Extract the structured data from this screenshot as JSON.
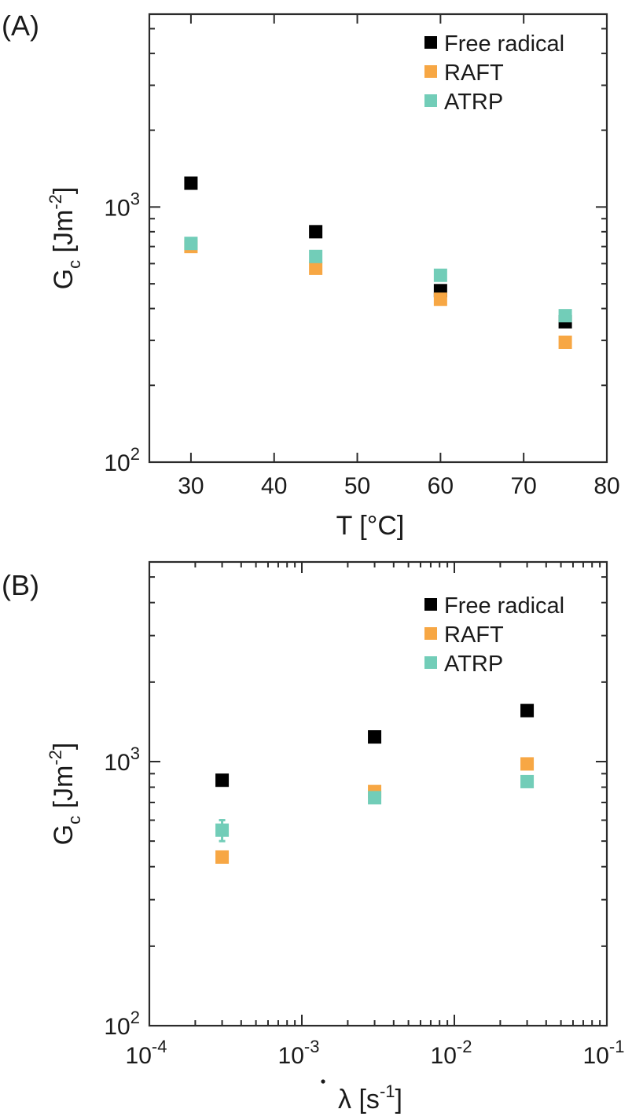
{
  "chart_data": [
    {
      "type": "scatter",
      "panel_label": "(A)",
      "xlabel": "T [°C]",
      "ylabel_main": "G",
      "ylabel_sub": "c",
      "ylabel_unit": " [Jm",
      "ylabel_exp": "-2",
      "ylabel_close": "]",
      "xscale": "linear",
      "yscale": "log",
      "xlim": [
        25,
        80
      ],
      "ylim": [
        100,
        5700
      ],
      "xticks": [
        30,
        40,
        50,
        60,
        70,
        80
      ],
      "xtick_labels": [
        "30",
        "40",
        "50",
        "60",
        "70",
        "80"
      ],
      "ytick_labels": [
        {
          "value": 100,
          "base": "10",
          "exp": "2"
        },
        {
          "value": 1000,
          "base": "10",
          "exp": "3"
        }
      ],
      "legend_position": "top-right",
      "series": [
        {
          "name": "Free radical",
          "color": "#000000",
          "x": [
            30,
            45,
            60,
            75
          ],
          "y": [
            1240,
            800,
            470,
            355
          ]
        },
        {
          "name": "RAFT",
          "color": "#F7A744",
          "x": [
            30,
            45,
            60,
            75
          ],
          "y": [
            700,
            575,
            435,
            295
          ]
        },
        {
          "name": "ATRP",
          "color": "#72CDB8",
          "x": [
            30,
            45,
            60,
            75
          ],
          "y": [
            720,
            640,
            540,
            375
          ]
        }
      ]
    },
    {
      "type": "scatter",
      "panel_label": "(B)",
      "xlabel_symbol": "λ",
      "xlabel_unit": " [s",
      "xlabel_exp": "-1",
      "xlabel_close": "]",
      "ylabel_main": "G",
      "ylabel_sub": "c",
      "ylabel_unit": " [Jm",
      "ylabel_exp": "-2",
      "ylabel_close": "]",
      "xscale": "log",
      "yscale": "log",
      "xlim": [
        0.0001,
        0.1
      ],
      "ylim": [
        100,
        5700
      ],
      "xtick_labels": [
        {
          "value": 0.0001,
          "base": "10",
          "exp": "-4"
        },
        {
          "value": 0.001,
          "base": "10",
          "exp": "-3"
        },
        {
          "value": 0.01,
          "base": "10",
          "exp": "-2"
        },
        {
          "value": 0.1,
          "base": "10",
          "exp": "-1"
        }
      ],
      "ytick_labels": [
        {
          "value": 100,
          "base": "10",
          "exp": "2"
        },
        {
          "value": 1000,
          "base": "10",
          "exp": "3"
        }
      ],
      "legend_position": "top-right",
      "series": [
        {
          "name": "Free radical",
          "color": "#000000",
          "x": [
            0.0003,
            0.003,
            0.03
          ],
          "y": [
            850,
            1240,
            1560
          ]
        },
        {
          "name": "RAFT",
          "color": "#F7A744",
          "x": [
            0.0003,
            0.003,
            0.03
          ],
          "y": [
            435,
            770,
            980
          ]
        },
        {
          "name": "ATRP",
          "color": "#72CDB8",
          "x": [
            0.0003,
            0.003,
            0.03
          ],
          "y": [
            550,
            730,
            840
          ],
          "yerr_low": [
            500,
            null,
            null
          ],
          "yerr_high": [
            600,
            null,
            null
          ]
        }
      ]
    }
  ]
}
